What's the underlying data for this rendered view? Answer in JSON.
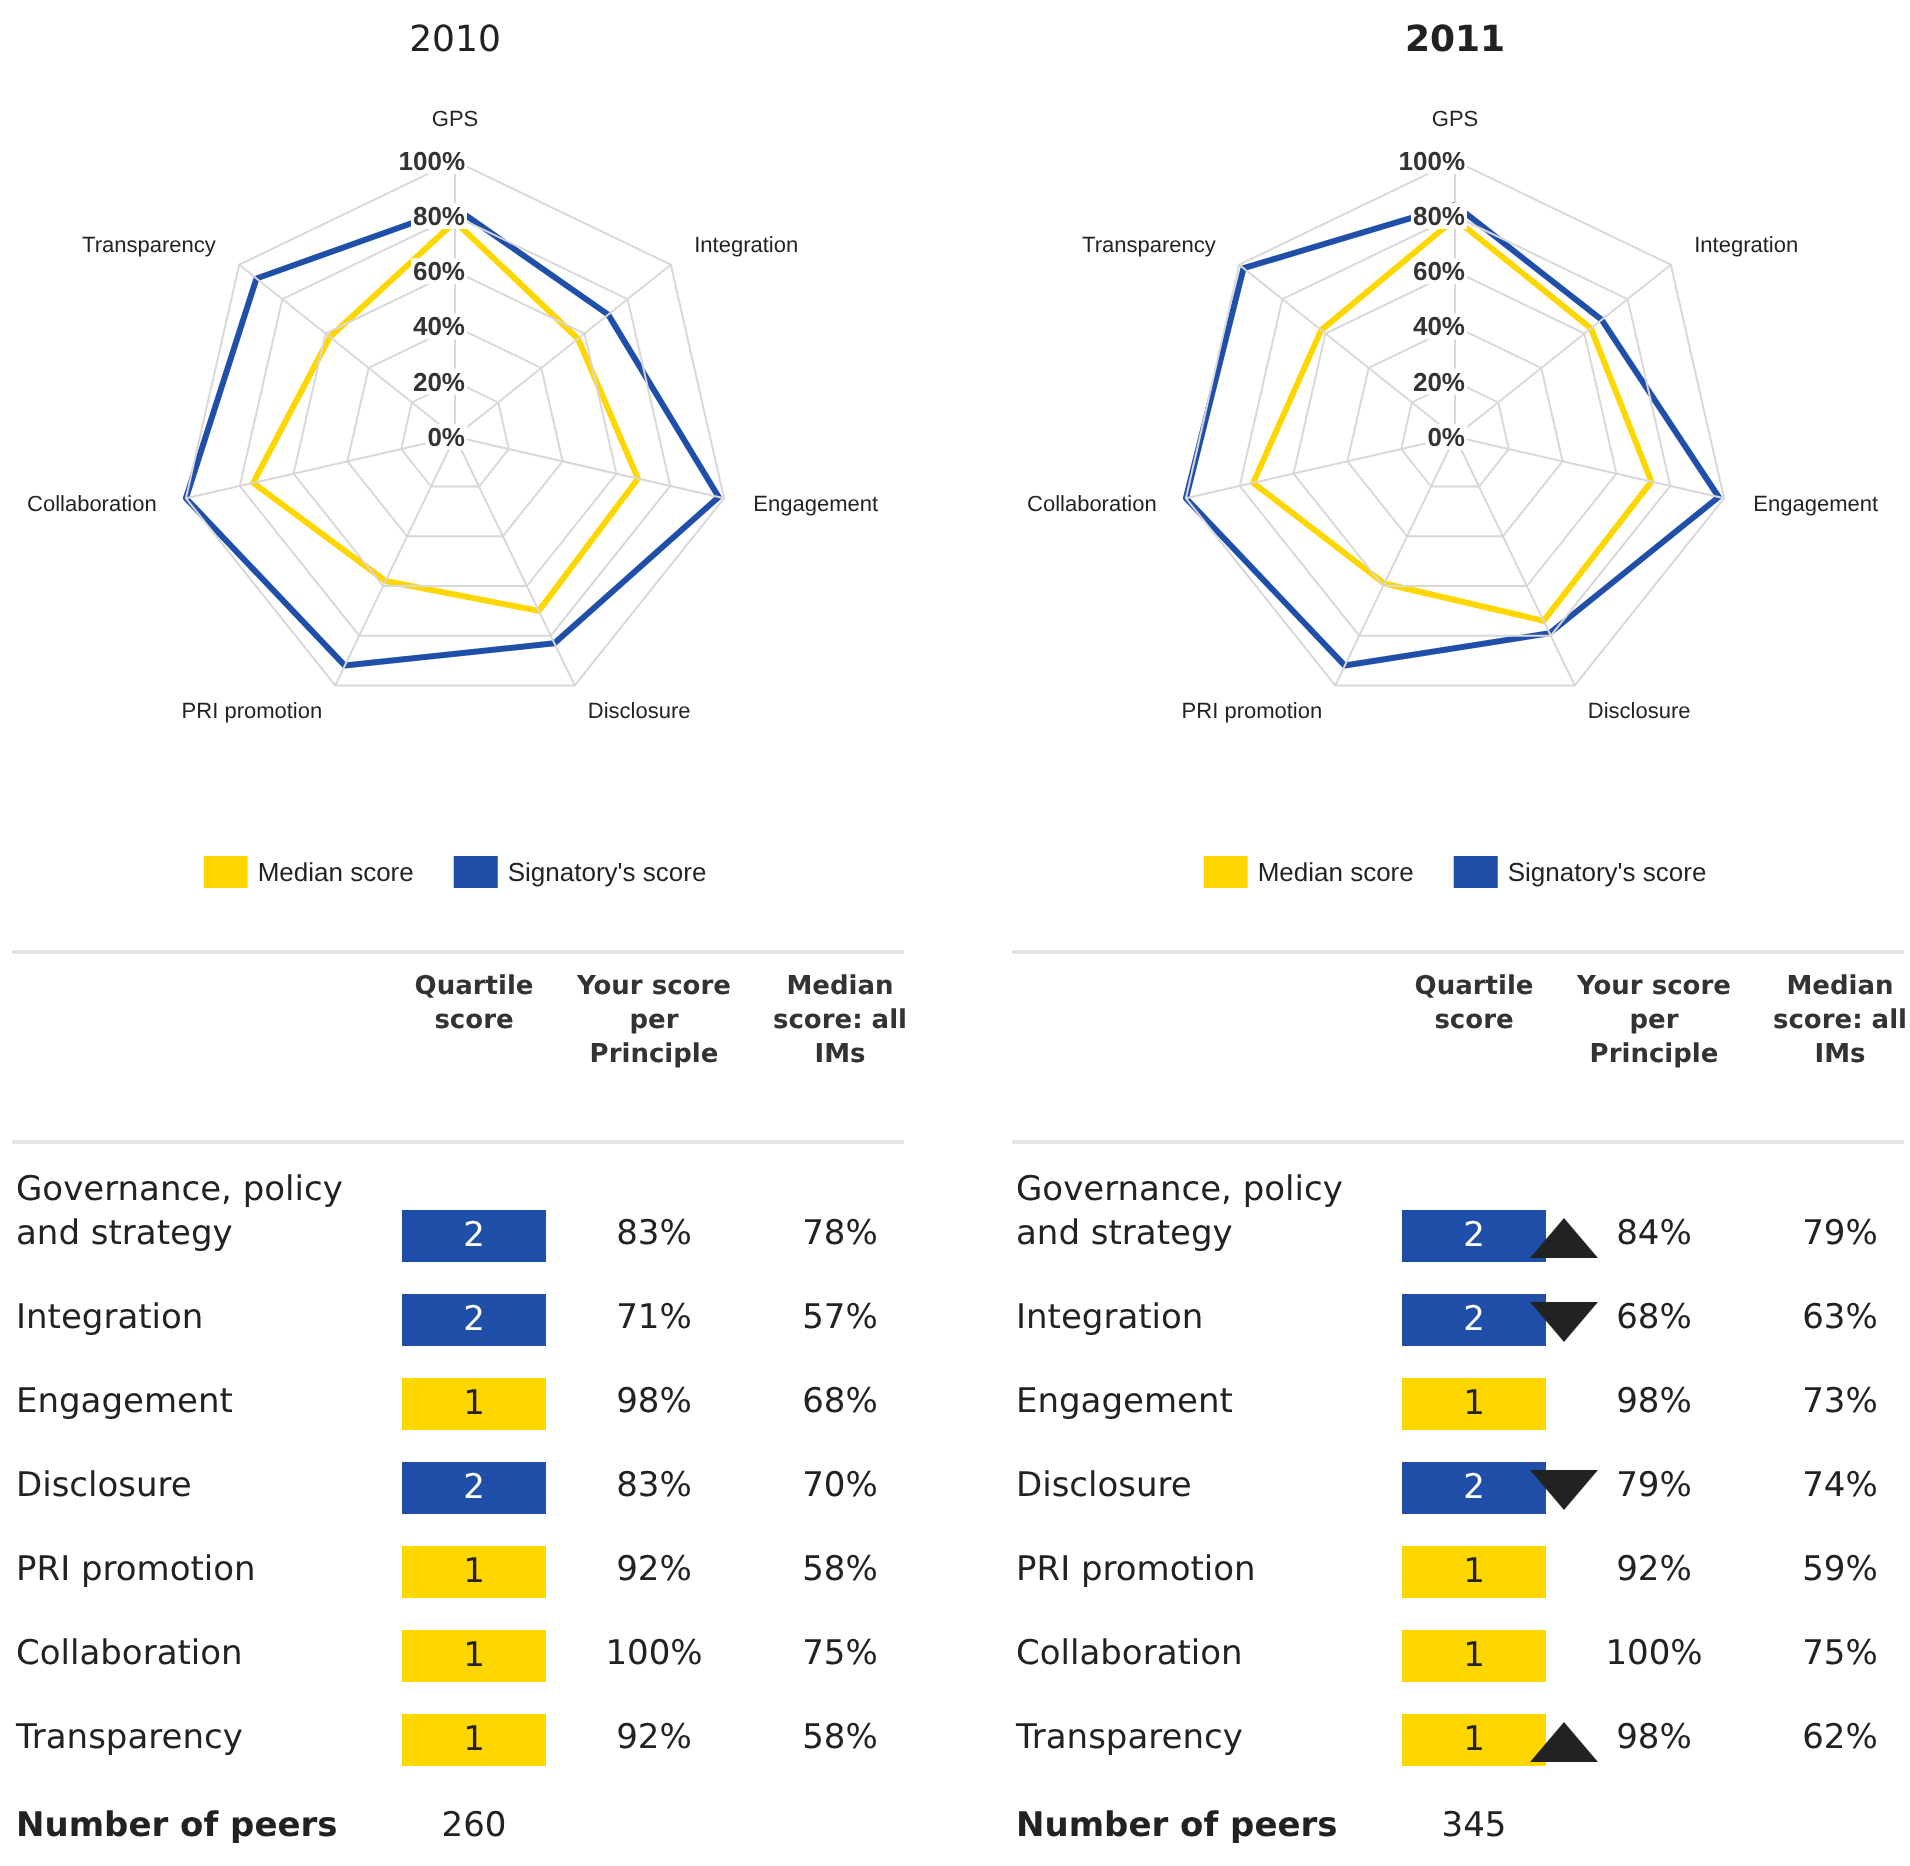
{
  "chart_data": [
    {
      "type": "radar",
      "title": "2010",
      "categories": [
        "GPS",
        "Integration",
        "Engagement",
        "Disclosure",
        "PRI promotion",
        "Collaboration",
        "Transparency"
      ],
      "series": [
        {
          "name": "Median score",
          "color": "#ffd700",
          "values": [
            78,
            57,
            68,
            70,
            58,
            75,
            58
          ]
        },
        {
          "name": "Signatory's score",
          "color": "#1f4fa8",
          "values": [
            83,
            71,
            98,
            83,
            92,
            100,
            92
          ]
        }
      ],
      "ylim": [
        0,
        100
      ],
      "yticks": [
        {
          "value": 0,
          "label": "0%"
        },
        {
          "value": 20,
          "label": "20%"
        },
        {
          "value": 40,
          "label": "40%"
        },
        {
          "value": 60,
          "label": "60%"
        },
        {
          "value": 80,
          "label": "80%"
        },
        {
          "value": 100,
          "label": "100%"
        }
      ],
      "grid": true,
      "legend": "bottom",
      "marker": "none",
      "line_style": "solid"
    },
    {
      "type": "radar",
      "title": "2011",
      "categories": [
        "GPS",
        "Integration",
        "Engagement",
        "Disclosure",
        "PRI promotion",
        "Collaboration",
        "Transparency"
      ],
      "series": [
        {
          "name": "Median score",
          "color": "#ffd700",
          "values": [
            79,
            63,
            73,
            74,
            59,
            75,
            62
          ]
        },
        {
          "name": "Signatory's score",
          "color": "#1f4fa8",
          "values": [
            84,
            68,
            98,
            79,
            92,
            100,
            98
          ]
        }
      ],
      "ylim": [
        0,
        100
      ],
      "yticks": [
        {
          "value": 0,
          "label": "0%"
        },
        {
          "value": 20,
          "label": "20%"
        },
        {
          "value": 40,
          "label": "40%"
        },
        {
          "value": 60,
          "label": "60%"
        },
        {
          "value": 80,
          "label": "80%"
        },
        {
          "value": 100,
          "label": "100%"
        }
      ],
      "grid": true,
      "legend": "bottom",
      "marker": "none",
      "line_style": "solid"
    },
    {
      "type": "other",
      "categories": [
        "Governance, policy and strategy",
        "Integration",
        "Engagement",
        "Disclosure",
        "PRI promotion",
        "Collaboration",
        "Transparency"
      ],
      "series": [
        {
          "name": "Quartile score",
          "values": [
            2,
            2,
            1,
            2,
            1,
            1,
            1
          ],
          "colors": [
            "#1f4fa8",
            "#1f4fa8",
            "#ffd700",
            "#1f4fa8",
            "#ffd700",
            "#ffd700",
            "#ffd700"
          ]
        },
        {
          "name": "Your score per Principle",
          "values": [
            83,
            71,
            98,
            83,
            92,
            100,
            92
          ],
          "value_labels": [
            "83%",
            "71%",
            "98%",
            "83%",
            "92%",
            "100%",
            "92%"
          ]
        },
        {
          "name": "Median score: all IMs",
          "values": [
            78,
            57,
            68,
            70,
            58,
            75,
            58
          ],
          "value_labels": [
            "78%",
            "57%",
            "68%",
            "70%",
            "58%",
            "75%",
            "58%"
          ]
        }
      ],
      "data_labels": true,
      "annotations": [
        "Number of peers",
        "260"
      ]
    },
    {
      "type": "other",
      "categories": [
        "Governance, policy and strategy",
        "Integration",
        "Engagement",
        "Disclosure",
        "PRI promotion",
        "Collaboration",
        "Transparency"
      ],
      "series": [
        {
          "name": "Quartile score",
          "values": [
            2,
            2,
            1,
            2,
            1,
            1,
            1
          ],
          "colors": [
            "#1f4fa8",
            "#1f4fa8",
            "#ffd700",
            "#1f4fa8",
            "#ffd700",
            "#ffd700",
            "#ffd700"
          ]
        },
        {
          "name": "Your score per Principle",
          "values": [
            84,
            68,
            98,
            79,
            92,
            100,
            98
          ],
          "value_labels": [
            "84%",
            "68%",
            "98%",
            "79%",
            "92%",
            "100%",
            "98%"
          ]
        },
        {
          "name": "Median score: all IMs",
          "values": [
            79,
            63,
            73,
            74,
            59,
            75,
            62
          ],
          "value_labels": [
            "79%",
            "63%",
            "73%",
            "74%",
            "59%",
            "75%",
            "62%"
          ]
        }
      ],
      "data_labels": true,
      "annotations": [
        "Number of peers",
        "345"
      ]
    }
  ]
}
